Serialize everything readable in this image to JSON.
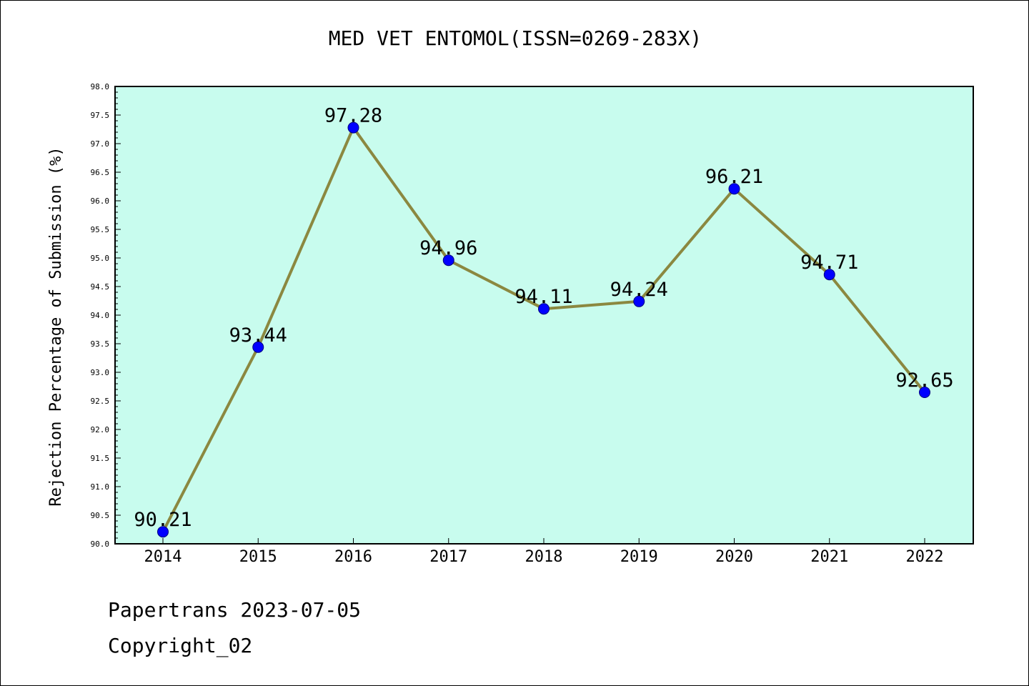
{
  "chart_data": {
    "type": "line",
    "title": "MED VET ENTOMOL(ISSN=0269-283X)",
    "ylabel": "Rejection Percentage of Submission (%)",
    "xlabel": "",
    "categories": [
      "2014",
      "2015",
      "2016",
      "2017",
      "2018",
      "2019",
      "2020",
      "2021",
      "2022"
    ],
    "values": [
      90.21,
      93.44,
      97.28,
      94.96,
      94.11,
      94.24,
      96.21,
      94.71,
      92.65
    ],
    "data_labels": [
      "90.21",
      "93.44",
      "97.28",
      "94.96",
      "94.11",
      "94.24",
      "96.21",
      "94.71",
      "92.65"
    ],
    "ylim": [
      90.0,
      98.0
    ],
    "yticks": [
      "90.0",
      "90.5",
      "91.0",
      "91.5",
      "92.0",
      "92.5",
      "93.0",
      "93.5",
      "94.0",
      "94.5",
      "95.0",
      "95.5",
      "96.0",
      "96.5",
      "97.0",
      "97.5",
      "98.0"
    ],
    "grid": false,
    "legend": "none",
    "colors": {
      "plot_background": "#c8fcee",
      "line": "#8b8840",
      "marker": "#0000ff",
      "marker_edge": "#000080"
    }
  },
  "footer": {
    "date_text": "Papertrans 2023-07-05",
    "copyright_text": "Copyright_02"
  }
}
